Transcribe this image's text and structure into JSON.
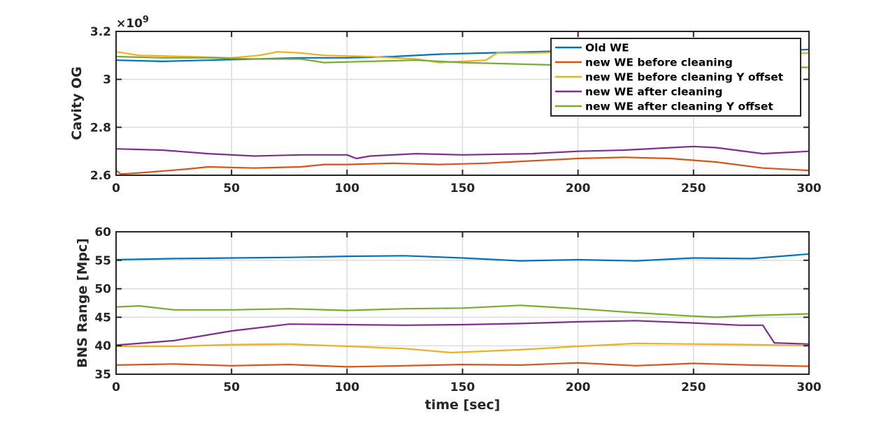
{
  "chart_data": [
    {
      "type": "line",
      "xlabel": "",
      "ylabel": "Cavity OG",
      "exponent_label": "×10",
      "exponent_power": "9",
      "xlim": [
        0,
        300
      ],
      "ylim": [
        2.6,
        3.2
      ],
      "xticks": [
        0,
        50,
        100,
        150,
        200,
        250,
        300
      ],
      "yticks": [
        2.6,
        2.8,
        3,
        3.2
      ],
      "ytick_labels": [
        "2.6",
        "2.8",
        "3",
        "3.2"
      ],
      "grid": true,
      "legend": "top-right",
      "series": [
        {
          "name": "Old WE",
          "color": "#0072BD",
          "x": [
            0,
            20,
            40,
            60,
            80,
            100,
            120,
            140,
            160,
            180,
            200,
            220,
            240,
            260,
            280,
            300
          ],
          "y": [
            3.08,
            3.075,
            3.08,
            3.085,
            3.09,
            3.09,
            3.095,
            3.105,
            3.11,
            3.115,
            3.12,
            3.12,
            3.12,
            3.12,
            3.115,
            3.125
          ]
        },
        {
          "name": "new WE before cleaning",
          "color": "#D95319",
          "x": [
            0,
            2,
            10,
            30,
            40,
            60,
            80,
            90,
            100,
            120,
            140,
            160,
            180,
            200,
            220,
            240,
            260,
            280,
            300
          ],
          "y": [
            2.62,
            2.605,
            2.61,
            2.625,
            2.635,
            2.63,
            2.635,
            2.645,
            2.645,
            2.65,
            2.645,
            2.65,
            2.66,
            2.67,
            2.675,
            2.67,
            2.655,
            2.63,
            2.62
          ]
        },
        {
          "name": "new WE before cleaning Y offset",
          "color": "#EDB120",
          "x": [
            0,
            10,
            30,
            50,
            62,
            70,
            80,
            90,
            110,
            130,
            140,
            160,
            165,
            180,
            200,
            220,
            240,
            260,
            280,
            300
          ],
          "y": [
            3.115,
            3.1,
            3.095,
            3.09,
            3.1,
            3.115,
            3.11,
            3.1,
            3.095,
            3.085,
            3.07,
            3.08,
            3.11,
            3.11,
            3.115,
            3.115,
            3.11,
            3.11,
            3.105,
            3.11
          ]
        },
        {
          "name": "new WE after cleaning",
          "color": "#7E2F8E",
          "x": [
            0,
            20,
            40,
            60,
            80,
            100,
            104,
            110,
            130,
            150,
            180,
            200,
            220,
            240,
            250,
            260,
            280,
            300
          ],
          "y": [
            2.71,
            2.705,
            2.69,
            2.68,
            2.685,
            2.685,
            2.67,
            2.68,
            2.69,
            2.685,
            2.69,
            2.7,
            2.705,
            2.715,
            2.72,
            2.715,
            2.69,
            2.7
          ]
        },
        {
          "name": "new WE after cleaning Y offset",
          "color": "#77AC30",
          "x": [
            0,
            20,
            40,
            60,
            80,
            90,
            110,
            130,
            150,
            170,
            190,
            210,
            230,
            260,
            280,
            300
          ],
          "y": [
            3.095,
            3.09,
            3.09,
            3.085,
            3.085,
            3.07,
            3.075,
            3.08,
            3.07,
            3.065,
            3.06,
            3.06,
            3.055,
            3.05,
            3.05,
            3.05
          ]
        }
      ]
    },
    {
      "type": "line",
      "xlabel": "time [sec]",
      "ylabel": "BNS Range [Mpc]",
      "xlim": [
        0,
        300
      ],
      "ylim": [
        35,
        60
      ],
      "xticks": [
        0,
        50,
        100,
        150,
        200,
        250,
        300
      ],
      "yticks": [
        35,
        40,
        45,
        50,
        55,
        60
      ],
      "ytick_labels": [
        "35",
        "40",
        "45",
        "50",
        "55",
        "60"
      ],
      "grid": true,
      "series": [
        {
          "name": "Old WE",
          "color": "#0072BD",
          "x": [
            0,
            25,
            50,
            75,
            100,
            125,
            150,
            175,
            200,
            225,
            250,
            275,
            300
          ],
          "y": [
            55.1,
            55.3,
            55.4,
            55.5,
            55.7,
            55.8,
            55.4,
            54.9,
            55.1,
            54.9,
            55.4,
            55.3,
            56.1
          ]
        },
        {
          "name": "new WE before cleaning",
          "color": "#D95319",
          "x": [
            0,
            25,
            50,
            75,
            100,
            125,
            150,
            175,
            200,
            225,
            250,
            275,
            300
          ],
          "y": [
            36.6,
            36.8,
            36.5,
            36.7,
            36.3,
            36.5,
            36.7,
            36.6,
            37.0,
            36.5,
            36.9,
            36.6,
            36.4
          ]
        },
        {
          "name": "new WE before cleaning Y offset",
          "color": "#EDB120",
          "x": [
            0,
            25,
            50,
            75,
            100,
            125,
            145,
            175,
            200,
            225,
            250,
            275,
            300
          ],
          "y": [
            39.9,
            39.9,
            40.2,
            40.3,
            39.9,
            39.5,
            38.8,
            39.3,
            39.9,
            40.4,
            40.3,
            40.2,
            40.0
          ]
        },
        {
          "name": "new WE after cleaning",
          "color": "#7E2F8E",
          "x": [
            0,
            25,
            50,
            75,
            100,
            125,
            150,
            175,
            200,
            225,
            250,
            270,
            280,
            285,
            300
          ],
          "y": [
            40.1,
            40.9,
            42.6,
            43.8,
            43.7,
            43.6,
            43.7,
            43.9,
            44.2,
            44.4,
            44.0,
            43.6,
            43.6,
            40.5,
            40.3
          ]
        },
        {
          "name": "new WE after cleaning Y offset",
          "color": "#77AC30",
          "x": [
            0,
            10,
            25,
            50,
            75,
            100,
            125,
            150,
            175,
            200,
            225,
            250,
            260,
            275,
            300
          ],
          "y": [
            46.8,
            47.0,
            46.3,
            46.3,
            46.5,
            46.2,
            46.5,
            46.6,
            47.1,
            46.5,
            45.8,
            45.2,
            45.0,
            45.3,
            45.6
          ]
        }
      ]
    }
  ]
}
